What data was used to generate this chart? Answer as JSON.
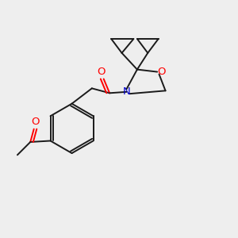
{
  "bg_color": "#eeeeee",
  "bond_color": "#1a1a1a",
  "o_color": "#ff0000",
  "n_color": "#0000cc",
  "lw": 1.4,
  "fs": 9.5,
  "xlim": [
    0,
    10
  ],
  "ylim": [
    0,
    10
  ]
}
